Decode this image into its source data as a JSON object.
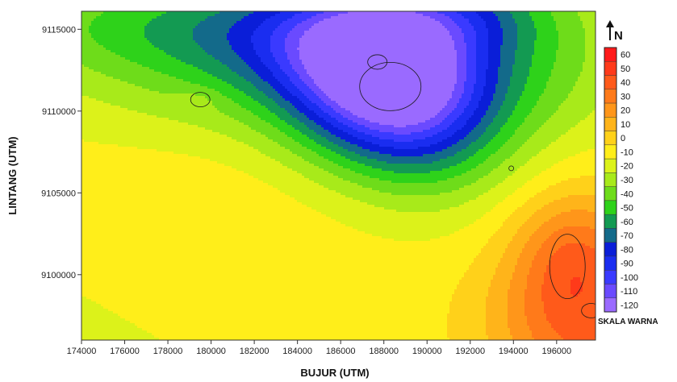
{
  "chart_data": {
    "type": "heatmap",
    "xlabel": "BUJUR (UTM)",
    "ylabel": "LINTANG (UTM)",
    "x_ticks": [
      174000,
      176000,
      178000,
      180000,
      182000,
      184000,
      186000,
      188000,
      190000,
      192000,
      194000,
      196000
    ],
    "y_ticks": [
      9100000,
      9105000,
      9110000,
      9115000
    ],
    "xlim": [
      174000,
      197800
    ],
    "ylim": [
      9096000,
      9116100
    ],
    "grid": false,
    "colorbar": {
      "title": "SKALA WARNA",
      "levels": [
        60,
        50,
        40,
        30,
        20,
        10,
        0,
        -10,
        -20,
        -30,
        -40,
        -50,
        -60,
        -70,
        -80,
        -90,
        -100,
        -110,
        -120
      ],
      "colors": [
        "#ff1a1a",
        "#ff3a1a",
        "#ff5a1a",
        "#ff7a1a",
        "#ff961a",
        "#ffb41a",
        "#ffd11a",
        "#ffee1a",
        "#dcf21a",
        "#a8ea1a",
        "#6edc1a",
        "#2ed21a",
        "#139a52",
        "#136a8a",
        "#0a1ed8",
        "#1a2df0",
        "#3a3aff",
        "#6a4aff",
        "#9a6aff"
      ]
    },
    "north_arrow": "N",
    "features": [
      {
        "kind": "minimum",
        "x": 187700,
        "y": 9113000,
        "value": -120
      },
      {
        "kind": "minimum_region",
        "x": 188300,
        "y": 9111500,
        "value": -110
      },
      {
        "kind": "local_high",
        "x": 179500,
        "y": 9110700,
        "value": -10
      },
      {
        "kind": "saddle_convergence",
        "x": 193900,
        "y": 9106500,
        "value": -50
      },
      {
        "kind": "maximum",
        "x": 197600,
        "y": 9097800,
        "value": 40
      },
      {
        "kind": "high_region",
        "x": 196500,
        "y": 9100500,
        "value": 30
      }
    ]
  }
}
